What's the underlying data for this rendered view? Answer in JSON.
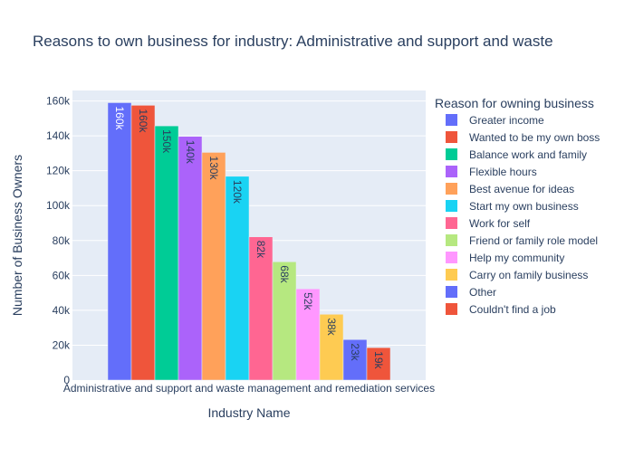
{
  "chart_data": {
    "type": "bar",
    "title": "Reasons to own business for industry: Administrative and support and waste",
    "xlabel": "Industry Name",
    "ylabel": "Number of Business Owners",
    "categories": [
      "Administrative and support and waste management and remediation services"
    ],
    "ylim": [
      0,
      166000
    ],
    "yticks": [
      0,
      20000,
      40000,
      60000,
      80000,
      100000,
      120000,
      140000,
      160000
    ],
    "ytick_labels": [
      "0",
      "20k",
      "40k",
      "60k",
      "80k",
      "100k",
      "120k",
      "140k",
      "160k"
    ],
    "grid": true,
    "legend_title": "Reason for owning business",
    "legend_position": "right",
    "series": [
      {
        "name": "Greater income",
        "values": [
          159000
        ],
        "label": "160k",
        "color": "#636efa"
      },
      {
        "name": "Wanted to be my own boss",
        "values": [
          157500
        ],
        "label": "160k",
        "color": "#EF553B"
      },
      {
        "name": "Balance work and family",
        "values": [
          145700
        ],
        "label": "150k",
        "color": "#00cc96"
      },
      {
        "name": "Flexible hours",
        "values": [
          139700
        ],
        "label": "140k",
        "color": "#ab63fa"
      },
      {
        "name": "Best avenue for ideas",
        "values": [
          130500
        ],
        "label": "130k",
        "color": "#FFA15A"
      },
      {
        "name": "Start my own business",
        "values": [
          116800
        ],
        "label": "120k",
        "color": "#19d3f3"
      },
      {
        "name": "Work for self",
        "values": [
          82100
        ],
        "label": "82k",
        "color": "#FF6692"
      },
      {
        "name": "Friend or family role model",
        "values": [
          67800
        ],
        "label": "68k",
        "color": "#B6E880"
      },
      {
        "name": "Help my community",
        "values": [
          52300
        ],
        "label": "52k",
        "color": "#FF97FF"
      },
      {
        "name": "Carry on family business",
        "values": [
          37700
        ],
        "label": "38k",
        "color": "#FECB52"
      },
      {
        "name": "Other",
        "values": [
          23200
        ],
        "label": "23k",
        "color": "#636efa"
      },
      {
        "name": "Couldn't find a job",
        "values": [
          18600
        ],
        "label": "19k",
        "color": "#EF553B"
      }
    ]
  }
}
